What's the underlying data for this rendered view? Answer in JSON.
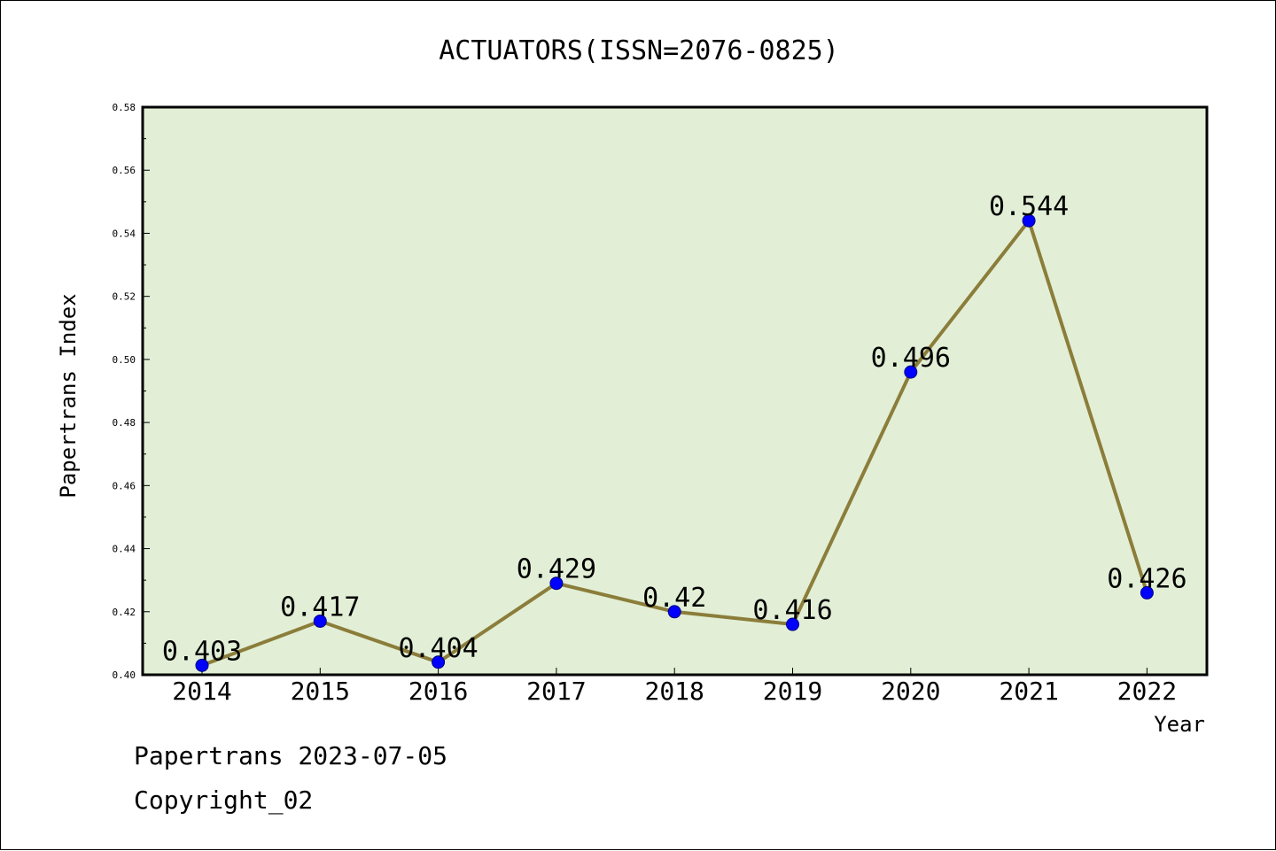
{
  "chart_data": {
    "type": "line",
    "title": "ACTUATORS(ISSN=2076-0825)",
    "xlabel": "Year",
    "ylabel": "Papertrans Index",
    "categories": [
      "2014",
      "2015",
      "2016",
      "2017",
      "2018",
      "2019",
      "2020",
      "2021",
      "2022"
    ],
    "values": [
      0.403,
      0.417,
      0.404,
      0.429,
      0.42,
      0.416,
      0.496,
      0.544,
      0.426
    ],
    "data_labels": [
      "0.403",
      "0.417",
      "0.404",
      "0.429",
      "0.42",
      "0.416",
      "0.496",
      "0.544",
      "0.426"
    ],
    "ylim": [
      0.4,
      0.58
    ],
    "yticks": [
      "0.40",
      "0.42",
      "0.44",
      "0.46",
      "0.48",
      "0.50",
      "0.52",
      "0.54",
      "0.56",
      "0.58"
    ],
    "grid": false,
    "legend": "none",
    "colors": {
      "plot_background": "#e2efd6",
      "line": "#8b7d3a",
      "marker": "#0000ff",
      "axis": "#000000"
    }
  },
  "footer": {
    "generated": "Papertrans 2023-07-05",
    "copyright": "Copyright_02"
  }
}
